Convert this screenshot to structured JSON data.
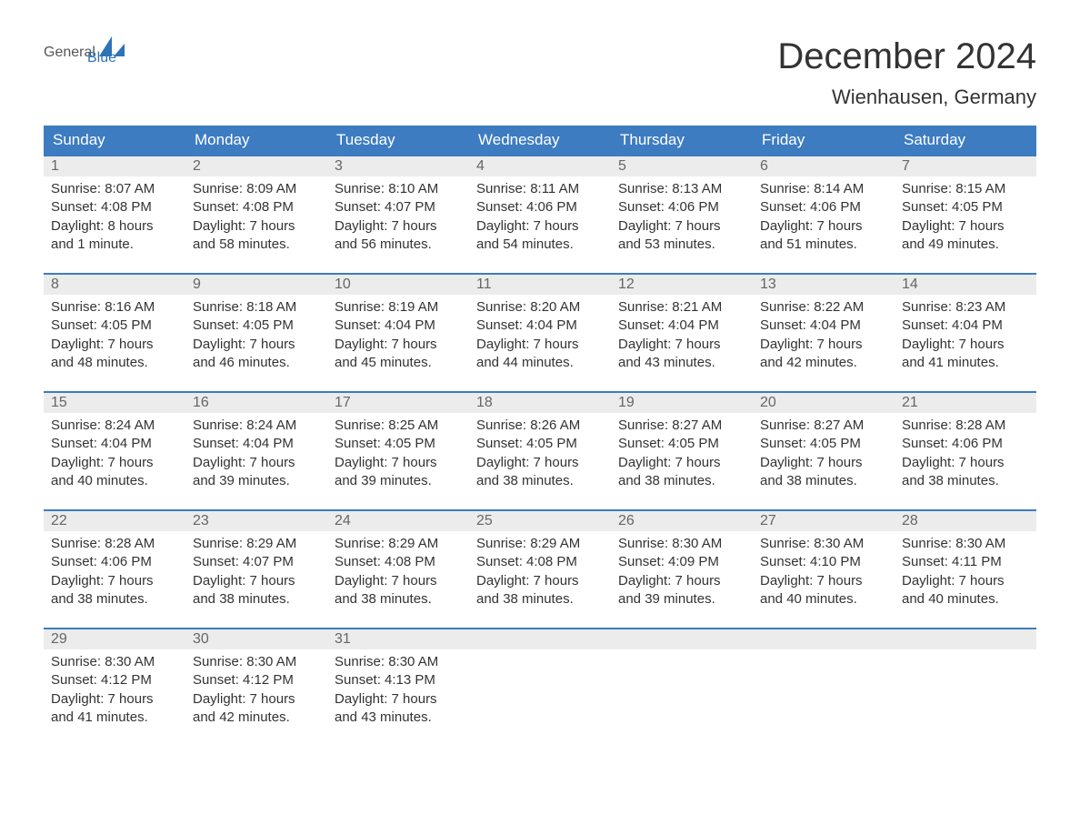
{
  "brand": {
    "general": "General",
    "blue": "Blue",
    "general_color": "#555555",
    "blue_color": "#2e72b8",
    "sail_color": "#2e72b8"
  },
  "title": {
    "month": "December 2024",
    "location": "Wienhausen, Germany",
    "month_fontsize": 40,
    "location_fontsize": 22,
    "text_color": "#333333"
  },
  "calendar": {
    "type": "table",
    "header_bg": "#3d7cc0",
    "header_text_color": "#ffffff",
    "row_border_color": "#3d7cc0",
    "daynum_bg": "#ececec",
    "daynum_color": "#666666",
    "body_text_color": "#333333",
    "background_color": "#ffffff",
    "weekdays": [
      "Sunday",
      "Monday",
      "Tuesday",
      "Wednesday",
      "Thursday",
      "Friday",
      "Saturday"
    ],
    "weeks": [
      [
        {
          "num": "1",
          "sunrise": "Sunrise: 8:07 AM",
          "sunset": "Sunset: 4:08 PM",
          "day1": "Daylight: 8 hours",
          "day2": "and 1 minute."
        },
        {
          "num": "2",
          "sunrise": "Sunrise: 8:09 AM",
          "sunset": "Sunset: 4:08 PM",
          "day1": "Daylight: 7 hours",
          "day2": "and 58 minutes."
        },
        {
          "num": "3",
          "sunrise": "Sunrise: 8:10 AM",
          "sunset": "Sunset: 4:07 PM",
          "day1": "Daylight: 7 hours",
          "day2": "and 56 minutes."
        },
        {
          "num": "4",
          "sunrise": "Sunrise: 8:11 AM",
          "sunset": "Sunset: 4:06 PM",
          "day1": "Daylight: 7 hours",
          "day2": "and 54 minutes."
        },
        {
          "num": "5",
          "sunrise": "Sunrise: 8:13 AM",
          "sunset": "Sunset: 4:06 PM",
          "day1": "Daylight: 7 hours",
          "day2": "and 53 minutes."
        },
        {
          "num": "6",
          "sunrise": "Sunrise: 8:14 AM",
          "sunset": "Sunset: 4:06 PM",
          "day1": "Daylight: 7 hours",
          "day2": "and 51 minutes."
        },
        {
          "num": "7",
          "sunrise": "Sunrise: 8:15 AM",
          "sunset": "Sunset: 4:05 PM",
          "day1": "Daylight: 7 hours",
          "day2": "and 49 minutes."
        }
      ],
      [
        {
          "num": "8",
          "sunrise": "Sunrise: 8:16 AM",
          "sunset": "Sunset: 4:05 PM",
          "day1": "Daylight: 7 hours",
          "day2": "and 48 minutes."
        },
        {
          "num": "9",
          "sunrise": "Sunrise: 8:18 AM",
          "sunset": "Sunset: 4:05 PM",
          "day1": "Daylight: 7 hours",
          "day2": "and 46 minutes."
        },
        {
          "num": "10",
          "sunrise": "Sunrise: 8:19 AM",
          "sunset": "Sunset: 4:04 PM",
          "day1": "Daylight: 7 hours",
          "day2": "and 45 minutes."
        },
        {
          "num": "11",
          "sunrise": "Sunrise: 8:20 AM",
          "sunset": "Sunset: 4:04 PM",
          "day1": "Daylight: 7 hours",
          "day2": "and 44 minutes."
        },
        {
          "num": "12",
          "sunrise": "Sunrise: 8:21 AM",
          "sunset": "Sunset: 4:04 PM",
          "day1": "Daylight: 7 hours",
          "day2": "and 43 minutes."
        },
        {
          "num": "13",
          "sunrise": "Sunrise: 8:22 AM",
          "sunset": "Sunset: 4:04 PM",
          "day1": "Daylight: 7 hours",
          "day2": "and 42 minutes."
        },
        {
          "num": "14",
          "sunrise": "Sunrise: 8:23 AM",
          "sunset": "Sunset: 4:04 PM",
          "day1": "Daylight: 7 hours",
          "day2": "and 41 minutes."
        }
      ],
      [
        {
          "num": "15",
          "sunrise": "Sunrise: 8:24 AM",
          "sunset": "Sunset: 4:04 PM",
          "day1": "Daylight: 7 hours",
          "day2": "and 40 minutes."
        },
        {
          "num": "16",
          "sunrise": "Sunrise: 8:24 AM",
          "sunset": "Sunset: 4:04 PM",
          "day1": "Daylight: 7 hours",
          "day2": "and 39 minutes."
        },
        {
          "num": "17",
          "sunrise": "Sunrise: 8:25 AM",
          "sunset": "Sunset: 4:05 PM",
          "day1": "Daylight: 7 hours",
          "day2": "and 39 minutes."
        },
        {
          "num": "18",
          "sunrise": "Sunrise: 8:26 AM",
          "sunset": "Sunset: 4:05 PM",
          "day1": "Daylight: 7 hours",
          "day2": "and 38 minutes."
        },
        {
          "num": "19",
          "sunrise": "Sunrise: 8:27 AM",
          "sunset": "Sunset: 4:05 PM",
          "day1": "Daylight: 7 hours",
          "day2": "and 38 minutes."
        },
        {
          "num": "20",
          "sunrise": "Sunrise: 8:27 AM",
          "sunset": "Sunset: 4:05 PM",
          "day1": "Daylight: 7 hours",
          "day2": "and 38 minutes."
        },
        {
          "num": "21",
          "sunrise": "Sunrise: 8:28 AM",
          "sunset": "Sunset: 4:06 PM",
          "day1": "Daylight: 7 hours",
          "day2": "and 38 minutes."
        }
      ],
      [
        {
          "num": "22",
          "sunrise": "Sunrise: 8:28 AM",
          "sunset": "Sunset: 4:06 PM",
          "day1": "Daylight: 7 hours",
          "day2": "and 38 minutes."
        },
        {
          "num": "23",
          "sunrise": "Sunrise: 8:29 AM",
          "sunset": "Sunset: 4:07 PM",
          "day1": "Daylight: 7 hours",
          "day2": "and 38 minutes."
        },
        {
          "num": "24",
          "sunrise": "Sunrise: 8:29 AM",
          "sunset": "Sunset: 4:08 PM",
          "day1": "Daylight: 7 hours",
          "day2": "and 38 minutes."
        },
        {
          "num": "25",
          "sunrise": "Sunrise: 8:29 AM",
          "sunset": "Sunset: 4:08 PM",
          "day1": "Daylight: 7 hours",
          "day2": "and 38 minutes."
        },
        {
          "num": "26",
          "sunrise": "Sunrise: 8:30 AM",
          "sunset": "Sunset: 4:09 PM",
          "day1": "Daylight: 7 hours",
          "day2": "and 39 minutes."
        },
        {
          "num": "27",
          "sunrise": "Sunrise: 8:30 AM",
          "sunset": "Sunset: 4:10 PM",
          "day1": "Daylight: 7 hours",
          "day2": "and 40 minutes."
        },
        {
          "num": "28",
          "sunrise": "Sunrise: 8:30 AM",
          "sunset": "Sunset: 4:11 PM",
          "day1": "Daylight: 7 hours",
          "day2": "and 40 minutes."
        }
      ],
      [
        {
          "num": "29",
          "sunrise": "Sunrise: 8:30 AM",
          "sunset": "Sunset: 4:12 PM",
          "day1": "Daylight: 7 hours",
          "day2": "and 41 minutes."
        },
        {
          "num": "30",
          "sunrise": "Sunrise: 8:30 AM",
          "sunset": "Sunset: 4:12 PM",
          "day1": "Daylight: 7 hours",
          "day2": "and 42 minutes."
        },
        {
          "num": "31",
          "sunrise": "Sunrise: 8:30 AM",
          "sunset": "Sunset: 4:13 PM",
          "day1": "Daylight: 7 hours",
          "day2": "and 43 minutes."
        },
        {
          "empty": true
        },
        {
          "empty": true
        },
        {
          "empty": true
        },
        {
          "empty": true
        }
      ]
    ]
  }
}
